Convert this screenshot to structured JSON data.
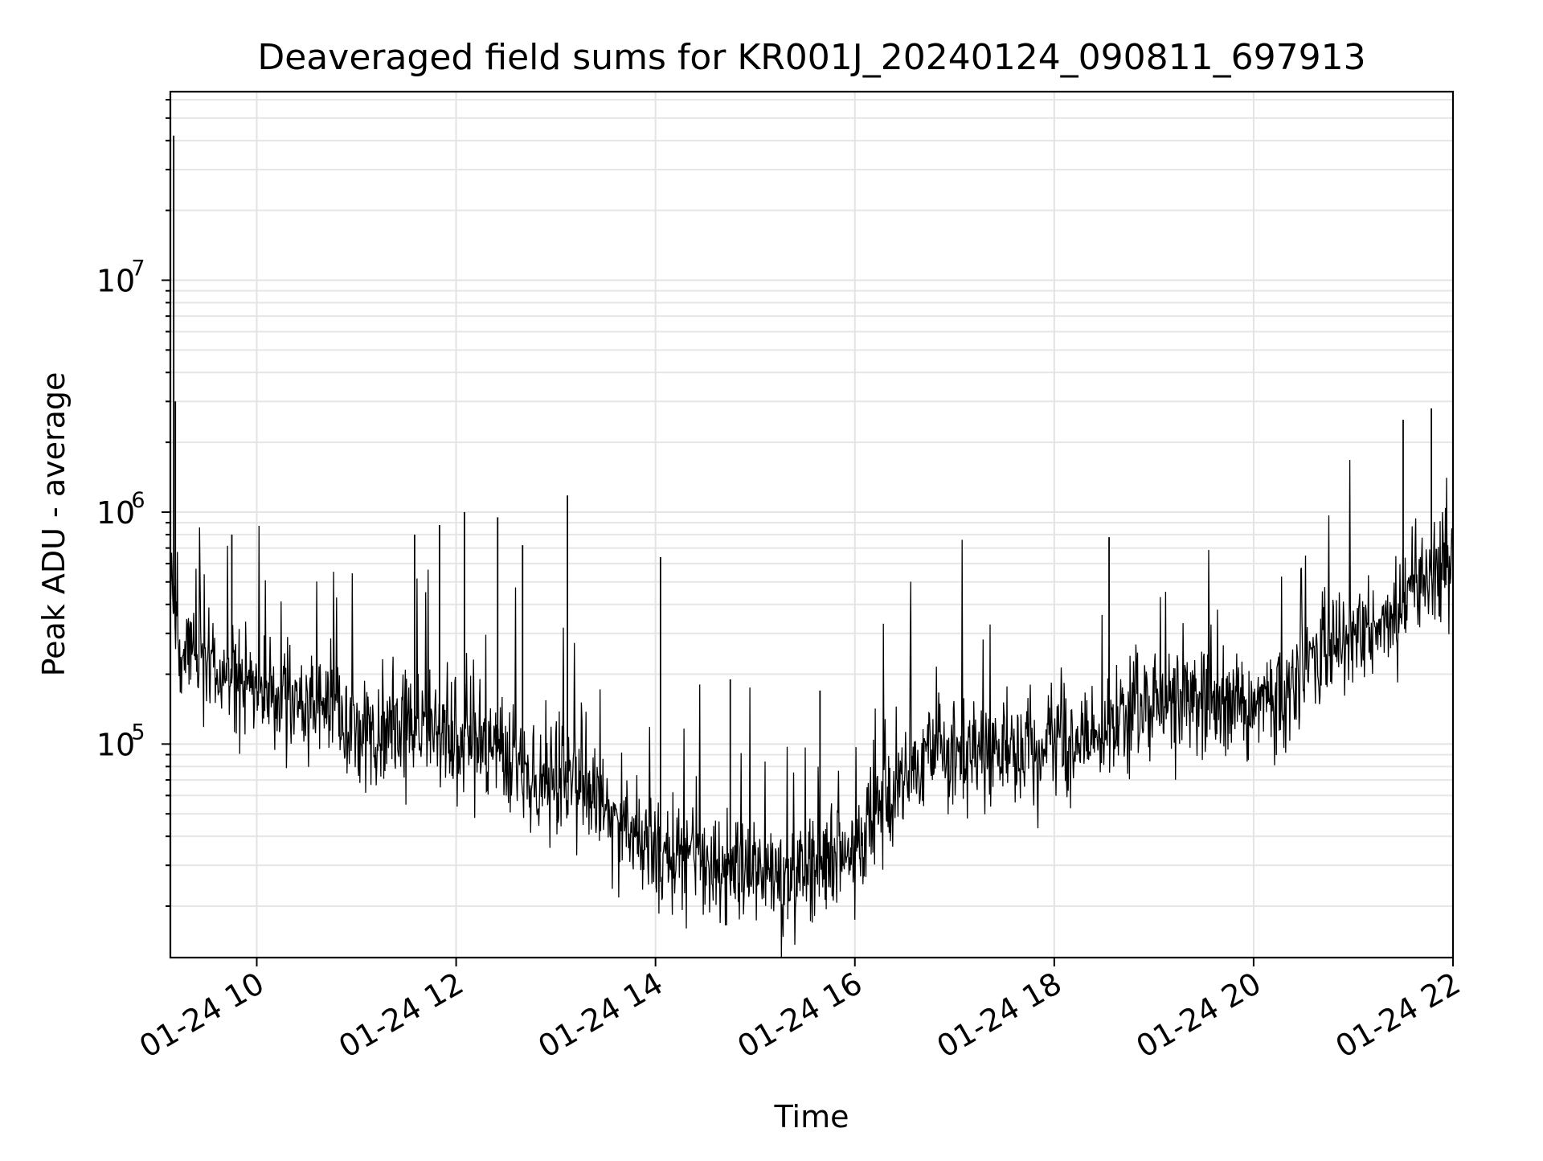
{
  "chart_data": {
    "type": "line",
    "title": "Deaveraged field sums for KR001J_20240124_090811_697913",
    "xlabel": "Time",
    "ylabel": "Peak ADU - average",
    "yscale": "log",
    "grid": true,
    "grid_minor": true,
    "line_color": "#000000",
    "grid_color": "#e3e3e3",
    "xlim": [
      "01-24 09:08",
      "01-24 22:00"
    ],
    "ylim": [
      12000,
      65000000
    ],
    "x_ticks": [
      {
        "t": "01-24 10:00",
        "label": "01-24 10"
      },
      {
        "t": "01-24 12:00",
        "label": "01-24 12"
      },
      {
        "t": "01-24 14:00",
        "label": "01-24 14"
      },
      {
        "t": "01-24 16:00",
        "label": "01-24 16"
      },
      {
        "t": "01-24 18:00",
        "label": "01-24 18"
      },
      {
        "t": "01-24 20:00",
        "label": "01-24 20"
      },
      {
        "t": "01-24 22:00",
        "label": "01-24 22"
      }
    ],
    "y_ticks": [
      {
        "value": 100000,
        "base": "10",
        "exp": "5"
      },
      {
        "value": 1000000,
        "base": "10",
        "exp": "6"
      },
      {
        "value": 10000000,
        "base": "10",
        "exp": "7"
      }
    ],
    "series": [
      {
        "points": [
          {
            "x": "01-24 09:08",
            "y": 550000
          },
          {
            "x": "01-24 09:10",
            "y": 42000000
          },
          {
            "x": "01-24 09:12",
            "y": 260000
          },
          {
            "x": "01-24 09:20",
            "y": 280000
          },
          {
            "x": "01-24 09:30",
            "y": 230000
          },
          {
            "x": "01-24 09:40",
            "y": 200000
          },
          {
            "x": "01-24 10:00",
            "y": 170000
          },
          {
            "x": "01-24 10:20",
            "y": 160000
          },
          {
            "x": "01-24 10:40",
            "y": 150000
          },
          {
            "x": "01-24 11:00",
            "y": 120000
          },
          {
            "x": "01-24 11:30",
            "y": 110000
          },
          {
            "x": "01-24 12:00",
            "y": 110000
          },
          {
            "x": "01-24 12:20",
            "y": 100000
          },
          {
            "x": "01-24 12:40",
            "y": 75000
          },
          {
            "x": "01-24 13:00",
            "y": 70000
          },
          {
            "x": "01-24 13:20",
            "y": 65000
          },
          {
            "x": "01-24 13:40",
            "y": 45000
          },
          {
            "x": "01-24 14:00",
            "y": 35000
          },
          {
            "x": "01-24 14:20",
            "y": 30000
          },
          {
            "x": "01-24 14:40",
            "y": 27000
          },
          {
            "x": "01-24 15:00",
            "y": 29000
          },
          {
            "x": "01-24 15:20",
            "y": 28000
          },
          {
            "x": "01-24 15:40",
            "y": 31000
          },
          {
            "x": "01-24 16:00",
            "y": 36000
          },
          {
            "x": "01-24 16:20",
            "y": 55000
          },
          {
            "x": "01-24 16:40",
            "y": 90000
          },
          {
            "x": "01-24 17:00",
            "y": 95000
          },
          {
            "x": "01-24 17:30",
            "y": 95000
          },
          {
            "x": "01-24 18:00",
            "y": 100000
          },
          {
            "x": "01-24 18:30",
            "y": 120000
          },
          {
            "x": "01-24 19:00",
            "y": 150000
          },
          {
            "x": "01-24 19:30",
            "y": 160000
          },
          {
            "x": "01-24 20:00",
            "y": 140000
          },
          {
            "x": "01-24 20:20",
            "y": 180000
          },
          {
            "x": "01-24 20:40",
            "y": 250000
          },
          {
            "x": "01-24 21:00",
            "y": 300000
          },
          {
            "x": "01-24 21:20",
            "y": 330000
          },
          {
            "x": "01-24 21:40",
            "y": 500000
          },
          {
            "x": "01-24 22:00",
            "y": 600000
          }
        ],
        "spikes": [
          {
            "x": "01-24 09:11",
            "y": 3000000
          },
          {
            "x": "01-24 09:45",
            "y": 800000
          },
          {
            "x": "01-24 11:35",
            "y": 800000
          },
          {
            "x": "01-24 11:50",
            "y": 880000
          },
          {
            "x": "01-24 12:05",
            "y": 1000000
          },
          {
            "x": "01-24 12:25",
            "y": 950000
          },
          {
            "x": "01-24 12:40",
            "y": 720000
          },
          {
            "x": "01-24 13:07",
            "y": 1180000
          },
          {
            "x": "01-24 14:03",
            "y": 640000
          },
          {
            "x": "01-24 14:45",
            "y": 190000
          },
          {
            "x": "01-24 15:39",
            "y": 170000
          },
          {
            "x": "01-24 18:33",
            "y": 780000
          },
          {
            "x": "01-24 21:30",
            "y": 2500000
          },
          {
            "x": "01-24 21:47",
            "y": 2800000
          }
        ]
      }
    ]
  }
}
